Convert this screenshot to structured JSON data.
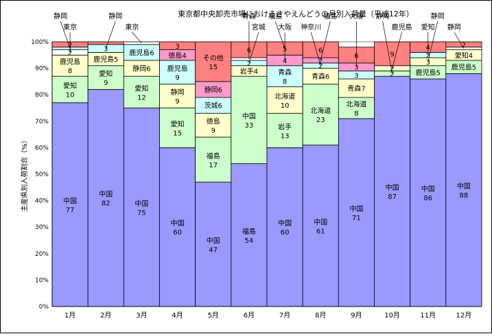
{
  "chart_data": {
    "type": "bar",
    "stacked": true,
    "normalized_percent": true,
    "title": "東京都中央卸売市場におけるさやえんどうの月別入荷量（平成12年）",
    "xlabel": "",
    "ylabel": "主産県別入荷割合（%）",
    "ylim": [
      0,
      100
    ],
    "yticks": [
      0,
      10,
      20,
      30,
      40,
      50,
      60,
      70,
      80,
      90,
      100
    ],
    "ytick_suffix": "%",
    "grid": true,
    "legend": "none",
    "categories": [
      "1月",
      "2月",
      "3月",
      "4月",
      "5月",
      "6月",
      "7月",
      "8月",
      "9月",
      "10月",
      "11月",
      "12月"
    ],
    "stacks": [
      [
        {
          "name": "中国",
          "value": 77,
          "color": "#9999ff"
        },
        {
          "name": "愛知",
          "value": 10,
          "color": "#ccffcc"
        },
        {
          "name": "鹿児島",
          "value": 8,
          "color": "#ffffcc"
        },
        {
          "name": "東京",
          "value": 2,
          "color": "#ffffff"
        },
        {
          "name": "静岡",
          "value": 1,
          "color": "#ccffff"
        },
        {
          "name": "",
          "value": 2,
          "color": "#ff8080"
        }
      ],
      [
        {
          "name": "中国",
          "value": 82,
          "color": "#9999ff"
        },
        {
          "name": "愛知",
          "value": 9,
          "color": "#ccffcc"
        },
        {
          "name": "鹿児島",
          "value": 5,
          "color": "#ffffcc"
        },
        {
          "name": "静岡",
          "value": 3,
          "color": "#ccffff"
        },
        {
          "name": "",
          "value": 1,
          "color": "#ff8080"
        }
      ],
      [
        {
          "name": "中国",
          "value": 75,
          "color": "#9999ff"
        },
        {
          "name": "愛知",
          "value": 12,
          "color": "#ccffcc"
        },
        {
          "name": "静岡",
          "value": 6,
          "color": "#ffffcc"
        },
        {
          "name": "鹿児島",
          "value": 6,
          "color": "#ccffff"
        },
        {
          "name": "東京",
          "value": 1,
          "color": "#ffffff"
        }
      ],
      [
        {
          "name": "中国",
          "value": 60,
          "color": "#9999ff"
        },
        {
          "name": "愛知",
          "value": 15,
          "color": "#ccffcc"
        },
        {
          "name": "静岡",
          "value": 9,
          "color": "#ffffcc"
        },
        {
          "name": "鹿児島",
          "value": 9,
          "color": "#ccffff"
        },
        {
          "name": "徳島",
          "value": 4,
          "color": "#ff99cc"
        },
        {
          "name": "",
          "value": 3,
          "color": "#ff8080"
        }
      ],
      [
        {
          "name": "中国",
          "value": 47,
          "color": "#9999ff"
        },
        {
          "name": "福島",
          "value": 17,
          "color": "#ccffcc"
        },
        {
          "name": "徳島",
          "value": 9,
          "color": "#ffffcc"
        },
        {
          "name": "茨城",
          "value": 6,
          "color": "#ccffff"
        },
        {
          "name": "静岡",
          "value": 6,
          "color": "#ff99cc"
        },
        {
          "name": "その他",
          "value": 15,
          "color": "#ff8080"
        }
      ],
      [
        {
          "name": "福島",
          "value": 54,
          "color": "#9999ff"
        },
        {
          "name": "中国",
          "value": 33,
          "color": "#ccffcc"
        },
        {
          "name": "岩手",
          "value": 4,
          "color": "#ffffcc"
        },
        {
          "name": "宮城",
          "value": 2,
          "color": "#ccffff"
        },
        {
          "name": "青森",
          "value": 1,
          "color": "#ffffff"
        },
        {
          "name": "",
          "value": 6,
          "color": "#ff8080"
        }
      ],
      [
        {
          "name": "中国",
          "value": 60,
          "color": "#9999ff"
        },
        {
          "name": "岩手",
          "value": 13,
          "color": "#ccffcc"
        },
        {
          "name": "北海道",
          "value": 10,
          "color": "#ffffcc"
        },
        {
          "name": "青森",
          "value": 8,
          "color": "#ccffff"
        },
        {
          "name": "大阪",
          "value": 4,
          "color": "#ff99cc"
        },
        {
          "name": "福島",
          "value": 5,
          "color": "#ff8080"
        }
      ],
      [
        {
          "name": "中国",
          "value": 61,
          "color": "#9999ff"
        },
        {
          "name": "北海道",
          "value": 23,
          "color": "#ccffcc"
        },
        {
          "name": "青森",
          "value": 6,
          "color": "#ffffcc"
        },
        {
          "name": "神奈川",
          "value": 2,
          "color": "#ccffff"
        },
        {
          "name": "福島",
          "value": 2,
          "color": "#ff99cc"
        },
        {
          "name": "",
          "value": 6,
          "color": "#ff8080"
        }
      ],
      [
        {
          "name": "中国",
          "value": 71,
          "color": "#9999ff"
        },
        {
          "name": "北海道",
          "value": 8,
          "color": "#ccffcc"
        },
        {
          "name": "青森",
          "value": 7,
          "color": "#ffffcc"
        },
        {
          "name": "神奈川",
          "value": 3,
          "color": "#ccffff"
        },
        {
          "name": "大阪",
          "value": 3,
          "color": "#ff99cc"
        },
        {
          "name": "",
          "value": 6,
          "color": "#ff8080"
        }
      ],
      [
        {
          "name": "中国",
          "value": 87,
          "color": "#9999ff"
        },
        {
          "name": "静岡",
          "value": 2,
          "color": "#ccffcc"
        },
        {
          "name": "鹿児島",
          "value": 2,
          "color": "#ffffcc"
        },
        {
          "name": "",
          "value": 9,
          "color": "#ff8080"
        }
      ],
      [
        {
          "name": "中国",
          "value": 86,
          "color": "#9999ff"
        },
        {
          "name": "鹿児島",
          "value": 5,
          "color": "#ccffcc"
        },
        {
          "name": "静岡",
          "value": 3,
          "color": "#ffffcc"
        },
        {
          "name": "愛知",
          "value": 2,
          "color": "#ccffff"
        },
        {
          "name": "",
          "value": 4,
          "color": "#ff8080"
        }
      ],
      [
        {
          "name": "中国",
          "value": 88,
          "color": "#9999ff"
        },
        {
          "name": "鹿児島",
          "value": 5,
          "color": "#ccffcc"
        },
        {
          "name": "愛知",
          "value": 4,
          "color": "#ffffcc"
        },
        {
          "name": "静岡",
          "value": 1,
          "color": "#ffffff"
        },
        {
          "name": "",
          "value": 2,
          "color": "#ff8080"
        }
      ]
    ],
    "segment_labels": [
      [
        {
          "seg": 0,
          "text": "中国",
          "value": "77"
        },
        {
          "seg": 1,
          "text": "愛知",
          "value": "10"
        },
        {
          "seg": 2,
          "text": "鹿児島",
          "value": "8"
        },
        {
          "seg": 3,
          "value": "2"
        },
        {
          "seg": 4,
          "value": "1"
        },
        {
          "seg": 5,
          "value": "2"
        }
      ],
      [
        {
          "seg": 0,
          "text": "中国",
          "value": "82"
        },
        {
          "seg": 1,
          "text": "愛知",
          "value": "9"
        },
        {
          "seg": 2,
          "text": "鹿児島5"
        },
        {
          "seg": 3,
          "value": "3"
        }
      ],
      [
        {
          "seg": 0,
          "text": "中国",
          "value": "75"
        },
        {
          "seg": 1,
          "text": "愛知",
          "value": "12"
        },
        {
          "seg": 2,
          "text": "静岡6"
        },
        {
          "seg": 3,
          "text": "鹿児島6"
        }
      ],
      [
        {
          "seg": 0,
          "text": "中国",
          "value": "60"
        },
        {
          "seg": 1,
          "text": "愛知",
          "value": "15"
        },
        {
          "seg": 2,
          "text": "静岡",
          "value": "9"
        },
        {
          "seg": 3,
          "text": "鹿児島",
          "value": "9"
        },
        {
          "seg": 4,
          "text": "徳島4"
        },
        {
          "seg": 5,
          "value": "3"
        }
      ],
      [
        {
          "seg": 0,
          "text": "中国",
          "value": "47"
        },
        {
          "seg": 1,
          "text": "福島",
          "value": "17"
        },
        {
          "seg": 2,
          "text": "徳島",
          "value": "9"
        },
        {
          "seg": 3,
          "text": "茨城6"
        },
        {
          "seg": 4,
          "text": "静岡6"
        },
        {
          "seg": 5,
          "text": "その他",
          "value": "15"
        }
      ],
      [
        {
          "seg": 0,
          "text": "福島",
          "value": "54"
        },
        {
          "seg": 1,
          "text": "中国",
          "value": "33"
        },
        {
          "seg": 2,
          "text": "岩手4"
        },
        {
          "seg": 3,
          "value": "2"
        },
        {
          "seg": 5,
          "value": "6"
        }
      ],
      [
        {
          "seg": 0,
          "text": "中国",
          "value": "60"
        },
        {
          "seg": 1,
          "text": "岩手",
          "value": "13"
        },
        {
          "seg": 2,
          "text": "北海道",
          "value": "10"
        },
        {
          "seg": 3,
          "text": "青森",
          "value": "8"
        },
        {
          "seg": 4,
          "value": "4"
        },
        {
          "seg": 5,
          "value": "5"
        }
      ],
      [
        {
          "seg": 0,
          "text": "中国",
          "value": "61"
        },
        {
          "seg": 1,
          "text": "北海道",
          "value": "23"
        },
        {
          "seg": 2,
          "text": "青森6"
        },
        {
          "seg": 3,
          "value": "2"
        },
        {
          "seg": 4,
          "value": "2"
        },
        {
          "seg": 5,
          "value": "6"
        }
      ],
      [
        {
          "seg": 0,
          "text": "中国",
          "value": "71"
        },
        {
          "seg": 1,
          "text": "北海道",
          "value": "8"
        },
        {
          "seg": 2,
          "text": "青森7"
        },
        {
          "seg": 3,
          "value": "3"
        },
        {
          "seg": 4,
          "value": "3"
        },
        {
          "seg": 5,
          "value": "6"
        }
      ],
      [
        {
          "seg": 0,
          "text": "中国",
          "value": "87"
        },
        {
          "seg": 1,
          "value": "2"
        },
        {
          "seg": 2,
          "value": "2"
        },
        {
          "seg": 3,
          "value": "9"
        }
      ],
      [
        {
          "seg": 0,
          "text": "中国",
          "value": "86"
        },
        {
          "seg": 1,
          "text": "鹿児島5"
        },
        {
          "seg": 2,
          "value": "3"
        },
        {
          "seg": 3,
          "value": "2"
        },
        {
          "seg": 4,
          "value": "4"
        }
      ],
      [
        {
          "seg": 0,
          "text": "中国",
          "value": "88"
        },
        {
          "seg": 1,
          "text": "鹿児島5"
        },
        {
          "seg": 2,
          "text": "愛知4"
        },
        {
          "seg": 4,
          "value": "2"
        }
      ]
    ],
    "callouts": [
      {
        "text": "静岡",
        "bar": 0,
        "seg": 4
      },
      {
        "text": "東京",
        "bar": 0,
        "seg": 3
      },
      {
        "text": "静岡",
        "bar": 1,
        "seg": 3
      },
      {
        "text": "東京",
        "bar": 2,
        "seg": 4
      },
      {
        "text": "青森",
        "bar": 5,
        "seg": 4
      },
      {
        "text": "宮城",
        "bar": 5,
        "seg": 3
      },
      {
        "text": "福島",
        "bar": 6,
        "seg": 5
      },
      {
        "text": "大阪",
        "bar": 6,
        "seg": 4
      },
      {
        "text": "福島",
        "bar": 7,
        "seg": 4
      },
      {
        "text": "神奈川",
        "bar": 7,
        "seg": 3
      },
      {
        "text": "大阪",
        "bar": 8,
        "seg": 4
      },
      {
        "text": "鹿児島",
        "bar": 9,
        "seg": 2
      },
      {
        "text": "静岡",
        "bar": 9,
        "seg": 1
      },
      {
        "text": "愛知",
        "bar": 10,
        "seg": 3
      },
      {
        "text": "静岡",
        "bar": 10,
        "seg": 2
      },
      {
        "text": "静岡",
        "bar": 11,
        "seg": 3
      }
    ]
  }
}
